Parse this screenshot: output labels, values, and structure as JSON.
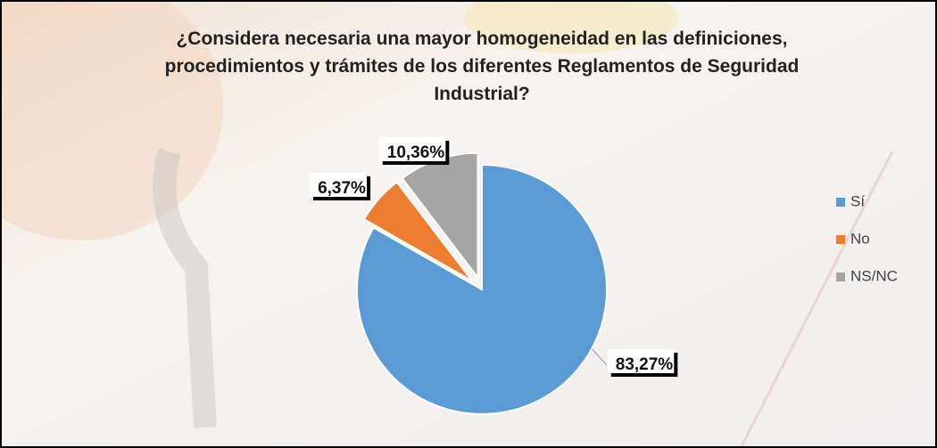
{
  "chart_data": {
    "type": "pie",
    "title": "¿Considera necesaria una mayor homogeneidad en las definiciones, procedimientos y trámites de los diferentes Reglamentos de Seguridad Industrial?",
    "categories": [
      "Sí",
      "No",
      "NS/NC"
    ],
    "values": [
      83.27,
      6.37,
      10.36
    ],
    "value_labels": [
      "83,27%",
      "6,37%",
      "10,36%"
    ],
    "colors": [
      "#5b9bd5",
      "#ed7d31",
      "#a5a5a5"
    ],
    "legend": "right"
  }
}
